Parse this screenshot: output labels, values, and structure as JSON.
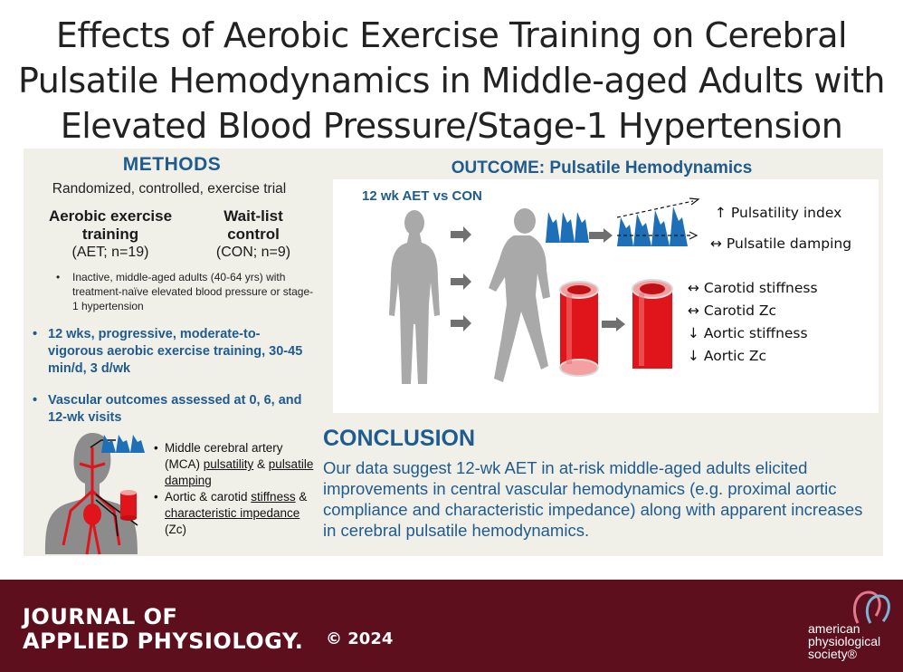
{
  "title": {
    "line1": "Effects of Aerobic Exercise Training on Cerebral",
    "line2": "Pulsatile Hemodynamics in Middle-aged Adults with",
    "line3": "Elevated Blood Pressure/Stage-1 Hypertension"
  },
  "methods": {
    "heading": "METHODS",
    "subtitle": "Randomized, controlled, exercise trial",
    "group_aet": {
      "name_line1": "Aerobic exercise",
      "name_line2": "training",
      "n": "(AET; n=19)"
    },
    "group_con": {
      "name_line1": "Wait-list",
      "name_line2": "control",
      "n": "(CON; n=9)"
    },
    "participants": "Inactive, middle-aged adults (40-64 yrs) with treatment-naïve elevated blood pressure or stage-1 hypertension",
    "bullet1": "12 wks, progressive, moderate-to-vigorous aerobic exercise training, 30-45 min/d, 3 d/wk",
    "bullet2": "Vascular outcomes assessed at 0, 6, and 12-wk visits",
    "mca": {
      "item1_pre": "Middle cerebral artery (MCA) ",
      "item1_u1": "pulsatility",
      "item1_mid": " & ",
      "item1_u2": "pulsatile damping",
      "item2_pre": "Aortic & carotid ",
      "item2_u1": "stiffness",
      "item2_mid": " & ",
      "item2_u2": "characteristic impedance ",
      "item2_post": "(Zc)"
    }
  },
  "outcome": {
    "heading": "OUTCOME: Pulsatile Hemodynamics",
    "comparison": "12 wk AET vs CON",
    "results": {
      "pulsatility": "↑ Pulsatility index",
      "damping": "↔ Pulsatile damping",
      "carotid_stiffness": "↔ Carotid stiffness",
      "carotid_zc": "↔ Carotid Zc",
      "aortic_stiffness": "↓ Aortic stiffness",
      "aortic_zc": "↓ Aortic Zc"
    }
  },
  "conclusion": {
    "heading": "CONCLUSION",
    "text": "Our data suggest 12-wk AET in at-risk middle-aged adults elicited improvements in central vascular hemodynamics (e.g. proximal aortic compliance and characteristic impedance) along with apparent increases in cerebral pulsatile hemodynamics."
  },
  "footer": {
    "journal_line1": "JOURNAL OF",
    "journal_line2": "APPLIED PHYSIOLOGY.",
    "copyright": "© 2024",
    "society_line1": "american",
    "society_line2": "physiological",
    "society_line3": "society®"
  },
  "colors": {
    "accent_blue": "#1f5b8f",
    "footer_maroon": "#5e0f1e",
    "panel_bg": "#f0f0e9",
    "vessel_red": "#e0151b",
    "waveform_blue": "#1d6fb8"
  }
}
